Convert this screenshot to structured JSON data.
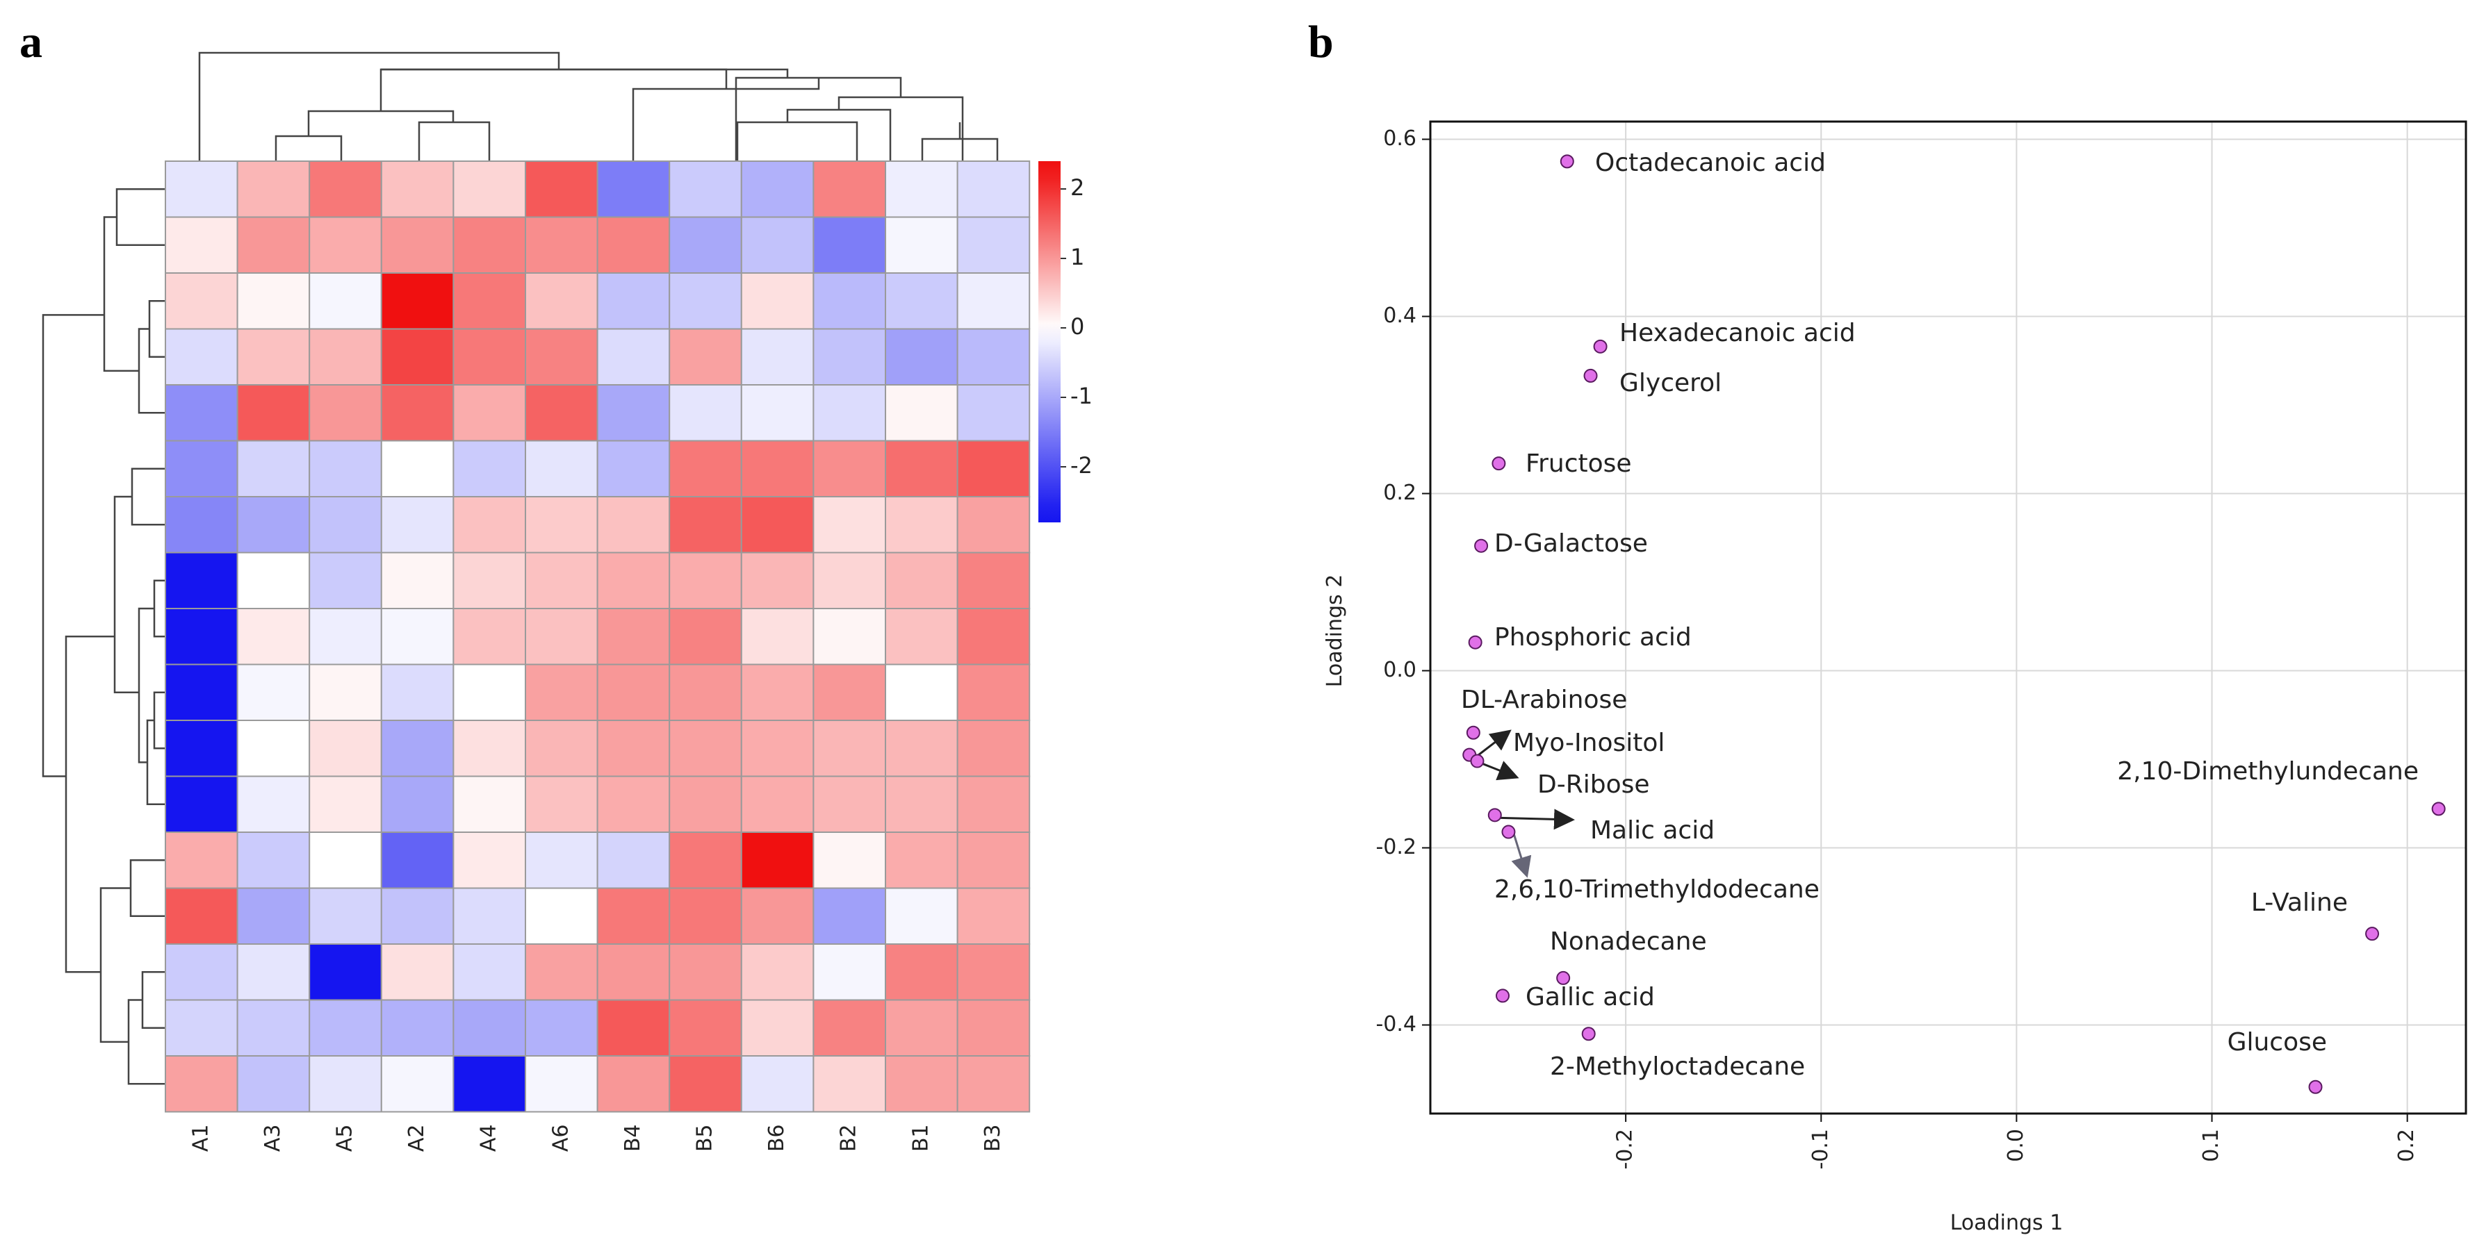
{
  "chart_data": [
    {
      "type": "heatmap",
      "panel_label": "a",
      "title": "",
      "columns": [
        "A1",
        "A3",
        "A5",
        "A2",
        "A4",
        "A6",
        "B4",
        "B5",
        "B6",
        "B2",
        "B1",
        "B3"
      ],
      "row_count": 17,
      "values": [
        [
          -0.3,
          0.7,
          1.3,
          0.6,
          0.4,
          1.6,
          -1.5,
          -0.6,
          -0.9,
          1.2,
          -0.2,
          -0.4
        ],
        [
          0.2,
          1.0,
          0.8,
          1.0,
          1.2,
          1.1,
          1.2,
          -1.0,
          -0.7,
          -1.5,
          -0.1,
          -0.5
        ],
        [
          0.4,
          0.1,
          -0.1,
          2.3,
          1.3,
          0.6,
          -0.7,
          -0.6,
          0.3,
          -0.8,
          -0.6,
          -0.2
        ],
        [
          -0.4,
          0.6,
          0.7,
          1.8,
          1.3,
          1.2,
          -0.4,
          0.9,
          -0.3,
          -0.7,
          -1.1,
          -0.8
        ],
        [
          -1.3,
          1.6,
          1.0,
          1.5,
          0.8,
          1.5,
          -1.0,
          -0.3,
          -0.2,
          -0.4,
          0.1,
          -0.6
        ],
        [
          -1.3,
          -0.5,
          -0.6,
          0.0,
          -0.6,
          -0.3,
          -0.8,
          1.3,
          1.3,
          1.1,
          1.4,
          1.6
        ],
        [
          -1.4,
          -1.0,
          -0.7,
          -0.3,
          0.6,
          0.5,
          0.6,
          1.5,
          1.6,
          0.3,
          0.5,
          0.9
        ],
        [
          -2.8,
          0.0,
          -0.6,
          0.1,
          0.4,
          0.6,
          0.8,
          0.8,
          0.7,
          0.4,
          0.7,
          1.2
        ],
        [
          -2.8,
          0.2,
          -0.2,
          -0.1,
          0.6,
          0.6,
          1.0,
          1.2,
          0.3,
          0.1,
          0.6,
          1.3
        ],
        [
          -2.8,
          -0.1,
          0.1,
          -0.4,
          0.0,
          0.9,
          1.0,
          1.0,
          0.8,
          1.0,
          0.0,
          1.1
        ],
        [
          -2.8,
          0.0,
          0.3,
          -1.0,
          0.3,
          0.7,
          0.9,
          0.9,
          0.8,
          0.7,
          0.7,
          1.0
        ],
        [
          -2.8,
          -0.2,
          0.2,
          -1.0,
          0.1,
          0.6,
          0.8,
          0.9,
          0.8,
          0.7,
          0.7,
          0.9
        ],
        [
          0.8,
          -0.6,
          0.0,
          -1.8,
          0.2,
          -0.3,
          -0.5,
          1.3,
          2.3,
          0.1,
          0.8,
          0.9
        ],
        [
          1.6,
          -1.0,
          -0.5,
          -0.7,
          -0.4,
          0.0,
          1.3,
          1.3,
          1.0,
          -1.1,
          -0.1,
          0.8
        ],
        [
          -0.6,
          -0.3,
          -2.8,
          0.3,
          -0.4,
          0.9,
          1.0,
          1.0,
          0.5,
          -0.1,
          1.2,
          1.1
        ],
        [
          -0.5,
          -0.6,
          -0.8,
          -0.9,
          -1.0,
          -0.9,
          1.6,
          1.3,
          0.4,
          1.2,
          0.9,
          1.0
        ],
        [
          0.9,
          -0.7,
          -0.3,
          -0.1,
          -2.8,
          -0.1,
          1.0,
          1.5,
          -0.3,
          0.4,
          0.9,
          0.9
        ]
      ],
      "colorbar_ticks": [
        "2",
        "1",
        "0",
        "-1",
        "-2"
      ],
      "colorbar_range": [
        -2.8,
        2.4
      ],
      "colors": {
        "low": "#1515f0",
        "mid": "#ffffff",
        "high": "#f01010"
      }
    },
    {
      "type": "scatter",
      "panel_label": "b",
      "title": "",
      "xlabel": "Loadings 1",
      "ylabel": "Loadings 2",
      "xlim": [
        -0.3,
        0.23
      ],
      "ylim": [
        -0.5,
        0.62
      ],
      "xticks": [
        "-0.2",
        "-0.1",
        "0.0",
        "0.1",
        "0.2"
      ],
      "yticks": [
        "0.6",
        "0.4",
        "0.2",
        "0.0",
        "-0.2",
        "-0.4"
      ],
      "grid": true,
      "point_color": "#e070e8",
      "points": [
        {
          "label": "Octadecanoic acid",
          "x": -0.23,
          "y": 0.575
        },
        {
          "label": "Hexadecanoic acid",
          "x": -0.213,
          "y": 0.366
        },
        {
          "label": "Glycerol",
          "x": -0.218,
          "y": 0.333
        },
        {
          "label": "Fructose",
          "x": -0.265,
          "y": 0.234
        },
        {
          "label": "D-Galactose",
          "x": -0.274,
          "y": 0.141
        },
        {
          "label": "Phosphoric acid",
          "x": -0.277,
          "y": 0.032
        },
        {
          "label": "DL-Arabinose",
          "x": -0.278,
          "y": -0.07
        },
        {
          "label": "Myo-Inositol",
          "x": -0.28,
          "y": -0.095
        },
        {
          "label": "D-Ribose",
          "x": -0.276,
          "y": -0.102
        },
        {
          "label": "Malic acid",
          "x": -0.267,
          "y": -0.163
        },
        {
          "label": "2,6,10-Trimethyldodecane",
          "x": -0.26,
          "y": -0.182
        },
        {
          "label": "Nonadecane",
          "x": -0.232,
          "y": -0.347
        },
        {
          "label": "Gallic acid",
          "x": -0.263,
          "y": -0.367
        },
        {
          "label": "2-Methyloctadecane",
          "x": -0.219,
          "y": -0.41
        },
        {
          "label": "2,10-Dimethylundecane",
          "x": 0.216,
          "y": -0.156
        },
        {
          "label": "L-Valine",
          "x": 0.182,
          "y": -0.297
        },
        {
          "label": "Glucose",
          "x": 0.153,
          "y": -0.47
        }
      ]
    }
  ]
}
